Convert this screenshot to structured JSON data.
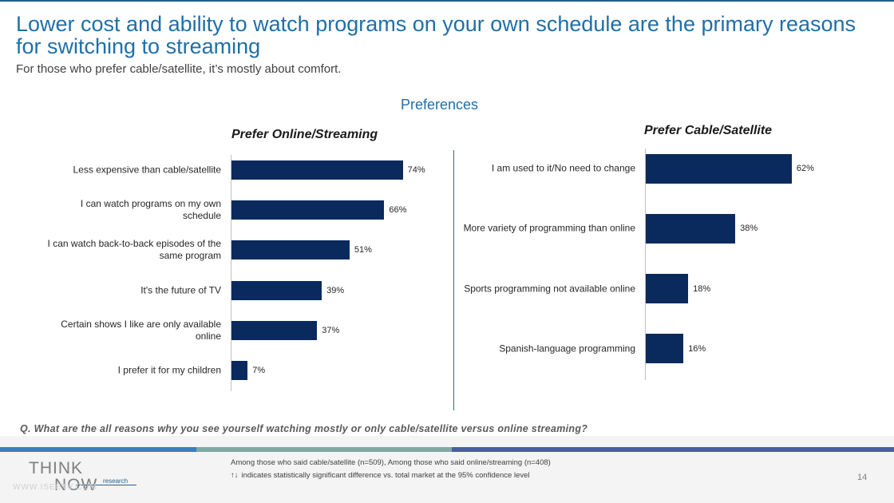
{
  "title": "Lower cost and ability to watch programs on your own schedule are the primary reasons for switching to streaming",
  "subtitle": "For those who prefer cable/satellite, it’s mostly about comfort.",
  "section_title": "Preferences",
  "question": "Q. What are the all reasons why you see yourself watching mostly or only cable/satellite versus online streaming?",
  "footer": {
    "note1": "Among those who said cable/satellite (n=509), Among those who said online/streaming (n=408)",
    "arrows": "↑↓",
    "note2": "indicates statistically significant difference vs. total market at the 95% confidence level",
    "page_number": "14",
    "logo_think": "THINK",
    "logo_now": "NOW",
    "logo_research": "research",
    "logo_url": "WWW.ISEETV.COM"
  },
  "colors": {
    "bar": "#0a2a5e",
    "title": "#1f6fa8",
    "stripe_blue": "#3a7fc0",
    "stripe_teal": "#7fa9a3",
    "stripe_navy": "#4a5fa0"
  },
  "chart_data": [
    {
      "type": "bar",
      "orientation": "horizontal",
      "title": "Prefer Online/Streaming",
      "categories": [
        "Less expensive than cable/satellite",
        "I can watch programs on my own schedule",
        "I can watch back-to-back episodes of the same program",
        "It's the future of TV",
        "Certain shows I like are only available online",
        "I prefer it for my children"
      ],
      "values": [
        74,
        66,
        51,
        39,
        37,
        7
      ],
      "value_labels": [
        "74%",
        "66%",
        "51%",
        "39%",
        "37%",
        "7%"
      ],
      "unit": "%",
      "xlim": [
        0,
        100
      ],
      "grid": false
    },
    {
      "type": "bar",
      "orientation": "horizontal",
      "title": "Prefer Cable/Satellite",
      "categories": [
        "I am used to it/No need to change",
        "More variety of programming than online",
        "Sports programming not available online",
        "Spanish-language programming"
      ],
      "values": [
        62,
        38,
        18,
        16
      ],
      "value_labels": [
        "62%",
        "38%",
        "18%",
        "16%"
      ],
      "unit": "%",
      "xlim": [
        0,
        100
      ],
      "grid": false
    }
  ]
}
